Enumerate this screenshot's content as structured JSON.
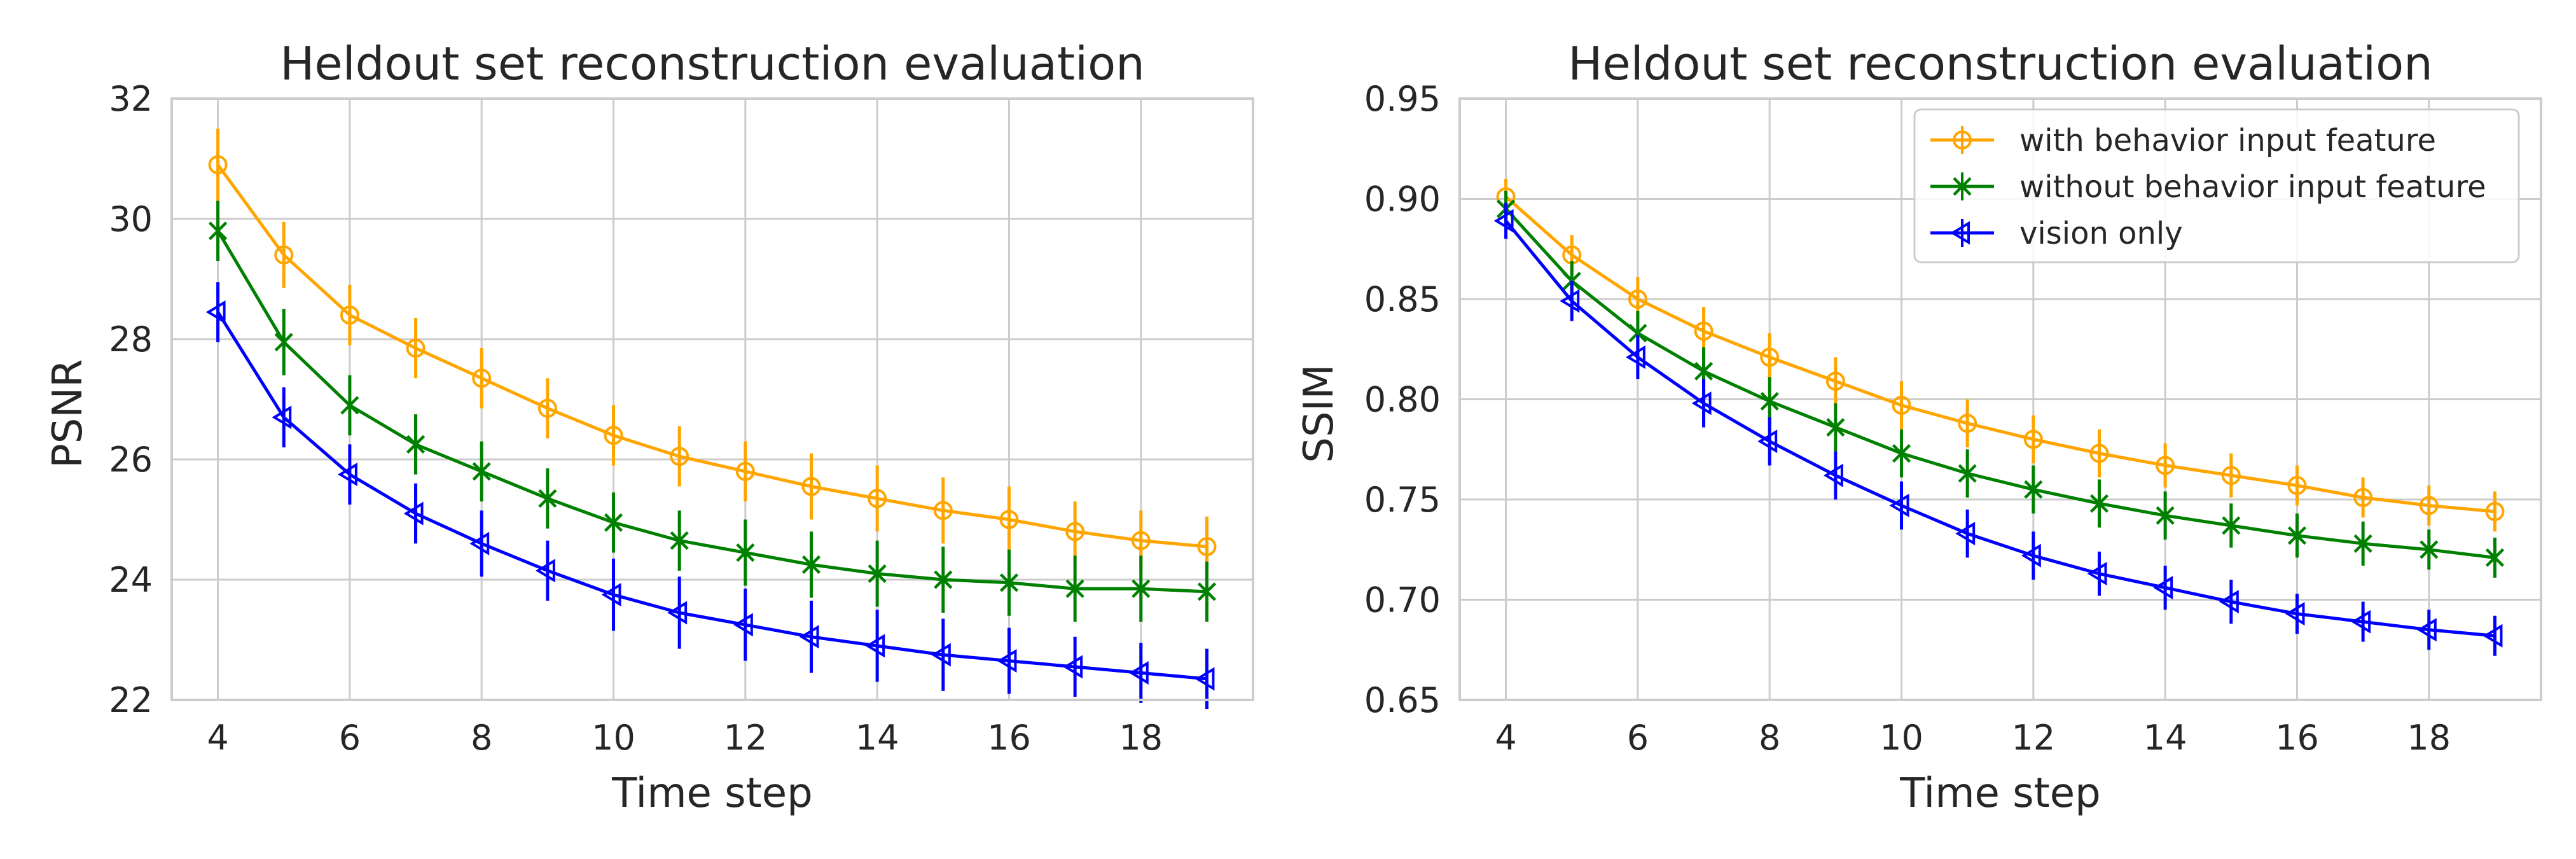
{
  "chart_data": [
    {
      "type": "line",
      "title": "Heldout set reconstruction evaluation",
      "xlabel": "Time step",
      "ylabel": "PSNR",
      "xlim": [
        3.3,
        19.7
      ],
      "ylim": [
        22,
        32
      ],
      "x_ticks": [
        "4",
        "6",
        "8",
        "10",
        "12",
        "14",
        "16",
        "18"
      ],
      "y_ticks": [
        "22",
        "24",
        "26",
        "28",
        "30",
        "32"
      ],
      "grid": true,
      "x": [
        4,
        5,
        6,
        7,
        8,
        9,
        10,
        11,
        12,
        13,
        14,
        15,
        16,
        17,
        18,
        19
      ],
      "series": [
        {
          "name": "with behavior input feature",
          "color": "#ffa500",
          "marker": "circle",
          "values": [
            30.9,
            29.4,
            28.4,
            27.85,
            27.35,
            26.85,
            26.4,
            26.05,
            25.8,
            25.55,
            25.35,
            25.15,
            25.0,
            24.8,
            24.65,
            24.55
          ],
          "errors": [
            0.6,
            0.55,
            0.5,
            0.5,
            0.5,
            0.5,
            0.5,
            0.5,
            0.5,
            0.55,
            0.55,
            0.55,
            0.55,
            0.5,
            0.5,
            0.5
          ]
        },
        {
          "name": "without behavior input feature",
          "color": "#008000",
          "marker": "x",
          "values": [
            29.8,
            27.95,
            26.9,
            26.25,
            25.8,
            25.35,
            24.95,
            24.65,
            24.45,
            24.25,
            24.1,
            24.0,
            23.95,
            23.85,
            23.85,
            23.8
          ],
          "errors": [
            0.5,
            0.55,
            0.5,
            0.5,
            0.5,
            0.5,
            0.5,
            0.5,
            0.55,
            0.55,
            0.55,
            0.55,
            0.55,
            0.55,
            0.55,
            0.5
          ]
        },
        {
          "name": "vision only",
          "color": "#0000ff",
          "marker": "triangle-left",
          "values": [
            28.45,
            26.7,
            25.75,
            25.1,
            24.6,
            24.15,
            23.75,
            23.45,
            23.25,
            23.05,
            22.9,
            22.75,
            22.65,
            22.55,
            22.45,
            22.35
          ],
          "errors": [
            0.5,
            0.5,
            0.5,
            0.5,
            0.55,
            0.5,
            0.6,
            0.6,
            0.6,
            0.6,
            0.6,
            0.6,
            0.55,
            0.5,
            0.5,
            0.5
          ]
        }
      ]
    },
    {
      "type": "line",
      "title": "Heldout set reconstruction evaluation",
      "xlabel": "Time step",
      "ylabel": "SSIM",
      "xlim": [
        3.3,
        19.7
      ],
      "ylim": [
        0.65,
        0.95
      ],
      "x_ticks": [
        "4",
        "6",
        "8",
        "10",
        "12",
        "14",
        "16",
        "18"
      ],
      "y_ticks": [
        "0.65",
        "0.70",
        "0.75",
        "0.80",
        "0.85",
        "0.90",
        "0.95"
      ],
      "grid": true,
      "legend_position": "top-right",
      "x": [
        4,
        5,
        6,
        7,
        8,
        9,
        10,
        11,
        12,
        13,
        14,
        15,
        16,
        17,
        18,
        19
      ],
      "series": [
        {
          "name": "with behavior input feature",
          "color": "#ffa500",
          "marker": "circle",
          "values": [
            0.901,
            0.872,
            0.85,
            0.834,
            0.821,
            0.809,
            0.797,
            0.788,
            0.78,
            0.773,
            0.767,
            0.762,
            0.757,
            0.751,
            0.747,
            0.744
          ],
          "errors": [
            0.009,
            0.01,
            0.011,
            0.012,
            0.012,
            0.012,
            0.012,
            0.012,
            0.012,
            0.012,
            0.011,
            0.011,
            0.01,
            0.01,
            0.01,
            0.01
          ]
        },
        {
          "name": "without behavior input feature",
          "color": "#008000",
          "marker": "x",
          "values": [
            0.895,
            0.859,
            0.833,
            0.814,
            0.799,
            0.786,
            0.773,
            0.763,
            0.755,
            0.748,
            0.742,
            0.737,
            0.732,
            0.728,
            0.725,
            0.721
          ],
          "errors": [
            0.009,
            0.01,
            0.011,
            0.012,
            0.012,
            0.012,
            0.012,
            0.012,
            0.012,
            0.012,
            0.012,
            0.011,
            0.011,
            0.011,
            0.01,
            0.01
          ]
        },
        {
          "name": "vision only",
          "color": "#0000ff",
          "marker": "triangle-left",
          "values": [
            0.889,
            0.849,
            0.821,
            0.798,
            0.779,
            0.762,
            0.747,
            0.733,
            0.722,
            0.713,
            0.706,
            0.699,
            0.693,
            0.689,
            0.685,
            0.682
          ],
          "errors": [
            0.009,
            0.01,
            0.011,
            0.012,
            0.012,
            0.012,
            0.012,
            0.012,
            0.012,
            0.011,
            0.011,
            0.011,
            0.01,
            0.01,
            0.01,
            0.01
          ]
        }
      ]
    }
  ]
}
